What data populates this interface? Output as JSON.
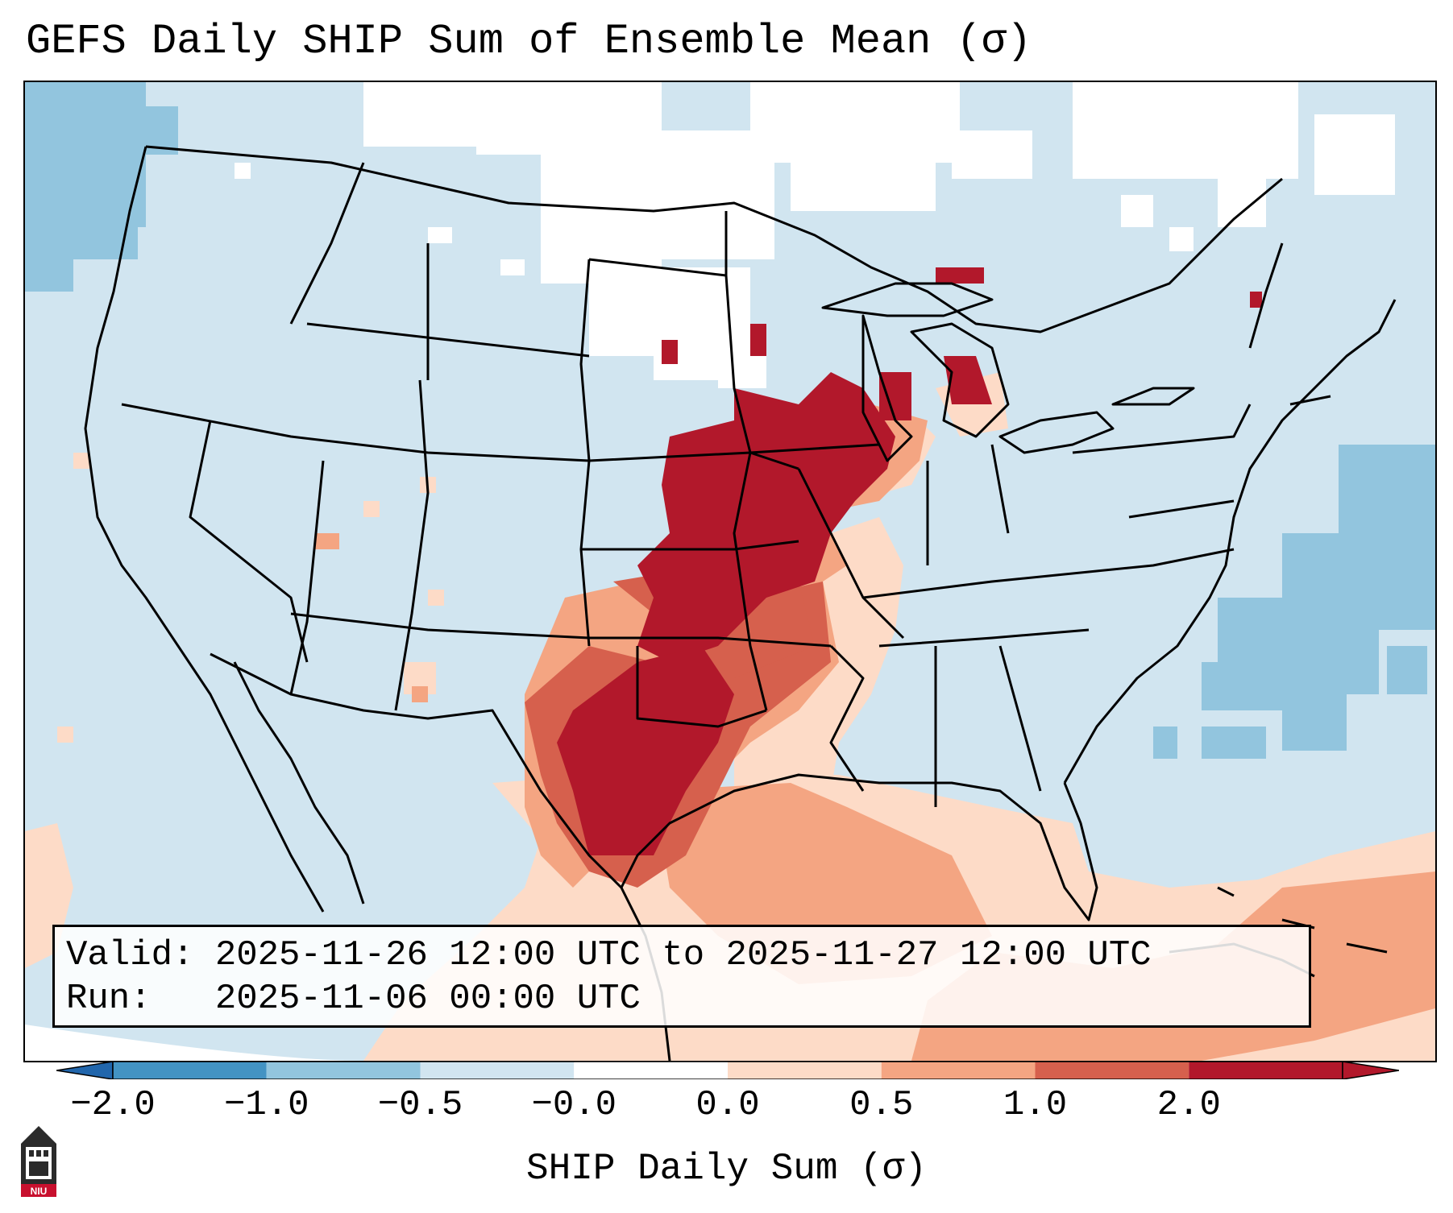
{
  "title": "GEFS Daily SHIP Sum of Ensemble Mean (σ)",
  "info": {
    "valid_label": "Valid:",
    "valid_value": "2025-11-26 12:00 UTC to 2025-11-27 12:00 UTC",
    "run_label": "Run:",
    "run_value": "2025-11-06 00:00 UTC"
  },
  "colorbar": {
    "label": "SHIP Daily Sum (σ)",
    "ticks": [
      "−2.0",
      "−1.0",
      "−0.5",
      "−0.0",
      "0.0",
      "0.5",
      "1.0",
      "2.0"
    ],
    "colors": [
      "#4393c3",
      "#92c5de",
      "#d1e5f0",
      "#ffffff",
      "#fddbc7",
      "#f4a582",
      "#d6604d",
      "#b2182b"
    ],
    "extend_min_color": "#2166ac",
    "extend_max_color": "#b2182b"
  },
  "logo": {
    "text": "NIU",
    "name": "niu-logo-icon"
  }
}
